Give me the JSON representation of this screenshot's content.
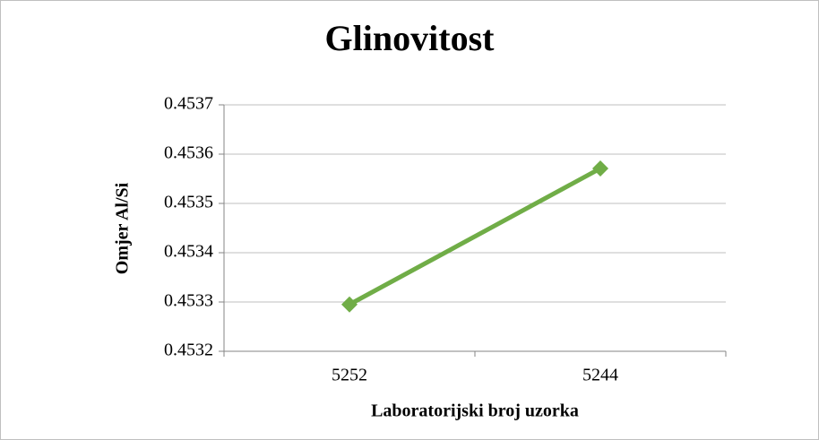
{
  "chart_data": {
    "type": "line",
    "title": "Glinovitost",
    "x_label": "Laboratorijski broj uzorka",
    "y_label": "Omjer Al/Si",
    "categories": [
      "5252",
      "5244"
    ],
    "series": [
      {
        "name": "Omjer Al/Si",
        "color": "#70ad47",
        "values": [
          0.453295,
          0.453571
        ]
      }
    ],
    "ylim": [
      0.4532,
      0.4537
    ],
    "yticks": [
      0.4532,
      0.4533,
      0.4534,
      0.4535,
      0.4536,
      0.4537
    ],
    "grid": true
  }
}
